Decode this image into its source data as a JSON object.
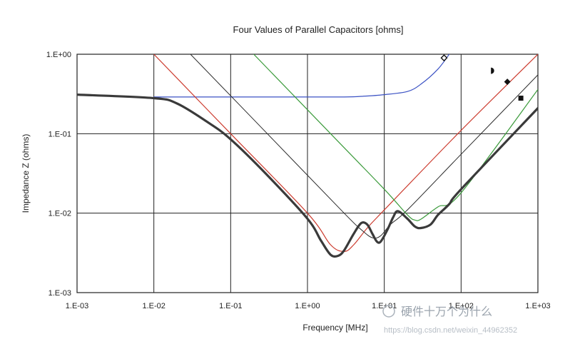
{
  "chart_data": {
    "type": "line",
    "title": "Four Values of Parallel Capacitors [ohms]",
    "xlabel": "Frequency [MHz]",
    "ylabel": "Impedance Z (ohms)",
    "x_scale": "log",
    "y_scale": "log",
    "xlim": [
      0.001,
      1000
    ],
    "ylim": [
      0.001,
      1
    ],
    "grid": true,
    "x_ticks": [
      "1.E-03",
      "1.E-02",
      "1.E-01",
      "1.E+00",
      "1.E+01",
      "1.E+02",
      "1.E+03"
    ],
    "y_ticks": [
      "1.E-03",
      "1.E-02",
      "1.E-01",
      "1.E+00"
    ],
    "series": [
      {
        "color": "#3b52c4",
        "width": 1.2,
        "marker": "diamond-open",
        "x": [
          0.01,
          0.1,
          1,
          3,
          5,
          10,
          20,
          30,
          50,
          70
        ],
        "y": [
          0.29,
          0.29,
          0.29,
          0.29,
          0.295,
          0.31,
          0.34,
          0.42,
          0.65,
          1.0
        ]
      },
      {
        "color": "#cc3b2e",
        "width": 1.2,
        "marker": "half-circle",
        "x": [
          0.01,
          0.1,
          1,
          2,
          3,
          4,
          6,
          10,
          100,
          1000
        ],
        "y": [
          1.0,
          0.1,
          0.01,
          0.004,
          0.0033,
          0.004,
          0.0065,
          0.011,
          0.11,
          1.0
        ]
      },
      {
        "color": "#2b2b2b",
        "width": 1.0,
        "marker": "diamond",
        "x": [
          0.03,
          0.3,
          3,
          5,
          7,
          9,
          12,
          20,
          100,
          1000
        ],
        "y": [
          1.0,
          0.1,
          0.01,
          0.0062,
          0.0049,
          0.0052,
          0.0072,
          0.011,
          0.055,
          0.55
        ]
      },
      {
        "color": "#3a9a3a",
        "width": 1.2,
        "marker": "square",
        "x": [
          0.2,
          2,
          10,
          20,
          25,
          30,
          50,
          100,
          1000
        ],
        "y": [
          1.0,
          0.1,
          0.02,
          0.0095,
          0.0082,
          0.0084,
          0.012,
          0.018,
          0.36
        ]
      },
      {
        "color": "#3a3a3a",
        "width": 3.2,
        "marker": "",
        "x": [
          0.001,
          0.01,
          0.02,
          0.05,
          0.1,
          0.3,
          1,
          1.5,
          2,
          2.5,
          3,
          4,
          5,
          6,
          7,
          8,
          9,
          11,
          13,
          15,
          20,
          25,
          30,
          40,
          50,
          70,
          100,
          1000
        ],
        "y": [
          0.31,
          0.28,
          0.24,
          0.14,
          0.085,
          0.03,
          0.0085,
          0.0045,
          0.003,
          0.0029,
          0.0034,
          0.0055,
          0.0075,
          0.0072,
          0.0055,
          0.0044,
          0.0044,
          0.0062,
          0.0088,
          0.0106,
          0.0085,
          0.0068,
          0.0065,
          0.0072,
          0.0095,
          0.013,
          0.02,
          0.21
        ]
      }
    ],
    "markers": [
      {
        "symbol": "diamond-open",
        "x": 60,
        "y": 0.9
      },
      {
        "symbol": "half-circle",
        "x": 250,
        "y": 0.62
      },
      {
        "symbol": "diamond",
        "x": 400,
        "y": 0.45
      },
      {
        "symbol": "square",
        "x": 600,
        "y": 0.28
      }
    ]
  },
  "watermark": {
    "text": "硬件十万个为什么",
    "url": "https://blog.csdn.net/weixin_44962352"
  }
}
